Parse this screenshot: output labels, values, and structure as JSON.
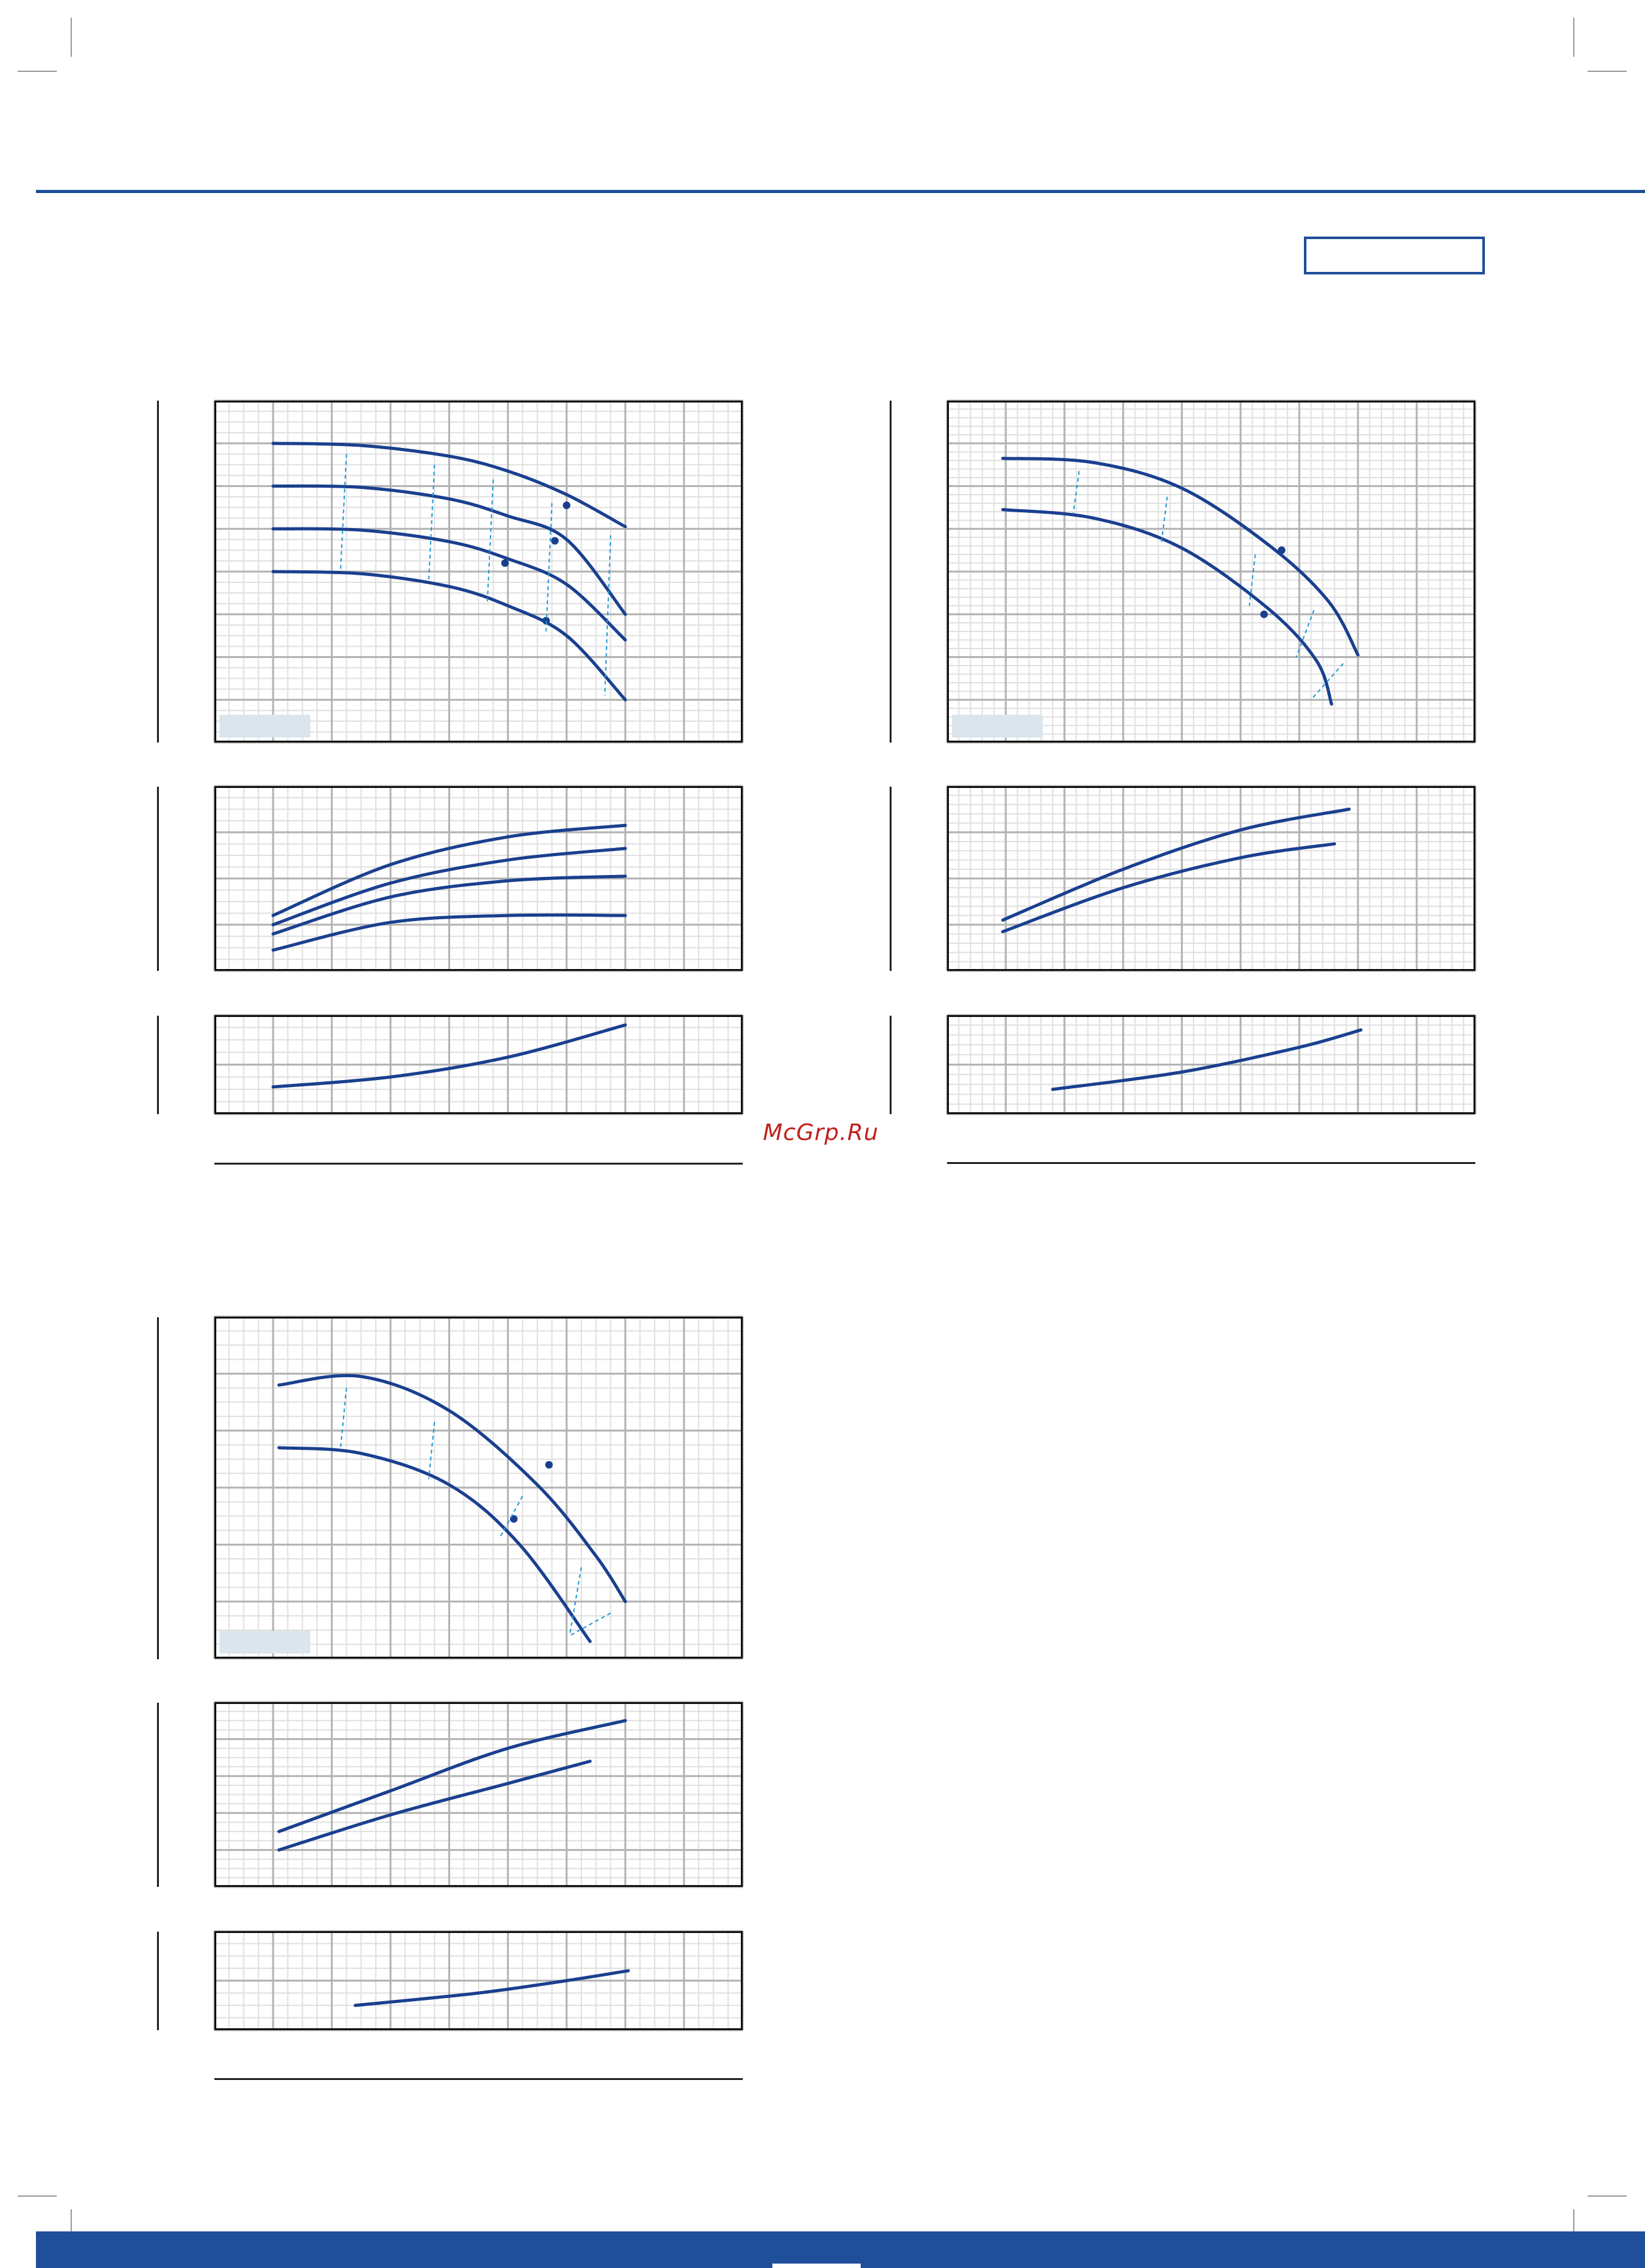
{
  "header": {
    "box_label": ""
  },
  "watermark": {
    "text": "McGrp.Ru"
  },
  "colors": {
    "accent": "#1f4e9a",
    "curve": "#1a3f8f",
    "dashed": "#1e9ad6",
    "grid_major": "#b3b3b3",
    "grid_minor": "#e0e0e0",
    "watermark": "#c0201c"
  },
  "chart_data": [
    {
      "type": "line",
      "title": "",
      "xlabel": "",
      "ylabel": "",
      "xlim": [
        0,
        9
      ],
      "ylim": [
        0,
        8
      ],
      "grid": true,
      "series": [
        {
          "values_xy": [
            [
              1,
              7
            ],
            [
              2.5,
              6.95
            ],
            [
              4,
              6.7
            ],
            [
              5,
              6.35
            ],
            [
              6,
              5.8
            ],
            [
              7,
              5.05
            ]
          ]
        },
        {
          "values_xy": [
            [
              1,
              6
            ],
            [
              2.5,
              5.97
            ],
            [
              4,
              5.7
            ],
            [
              5,
              5.3
            ],
            [
              6,
              4.75
            ],
            [
              7,
              3.0
            ]
          ]
        },
        {
          "values_xy": [
            [
              1,
              5
            ],
            [
              2.5,
              4.97
            ],
            [
              4,
              4.7
            ],
            [
              5,
              4.3
            ],
            [
              6,
              3.7
            ],
            [
              7,
              2.4
            ]
          ]
        },
        {
          "values_xy": [
            [
              1,
              4
            ],
            [
              2.5,
              3.95
            ],
            [
              4,
              3.65
            ],
            [
              5,
              3.2
            ],
            [
              6,
              2.5
            ],
            [
              7,
              1.0
            ]
          ]
        }
      ],
      "markers": [
        [
          6,
          5.55
        ],
        [
          5.8,
          4.72
        ],
        [
          4.95,
          4.2
        ],
        [
          5.65,
          2.85
        ]
      ]
    },
    {
      "type": "line",
      "title": "",
      "xlabel": "",
      "ylabel": "",
      "xlim": [
        0,
        9
      ],
      "ylim": [
        0,
        4
      ],
      "grid": true,
      "series": [
        {
          "values_xy": [
            [
              1,
              1.2
            ],
            [
              3,
              2.3
            ],
            [
              5,
              2.9
            ],
            [
              7,
              3.15
            ]
          ]
        },
        {
          "values_xy": [
            [
              1,
              1.0
            ],
            [
              3,
              1.9
            ],
            [
              5,
              2.4
            ],
            [
              7,
              2.65
            ]
          ]
        },
        {
          "values_xy": [
            [
              1,
              0.8
            ],
            [
              3,
              1.6
            ],
            [
              5,
              1.95
            ],
            [
              7,
              2.05
            ]
          ]
        },
        {
          "values_xy": [
            [
              1,
              0.45
            ],
            [
              3,
              1.05
            ],
            [
              5,
              1.2
            ],
            [
              7,
              1.2
            ]
          ]
        }
      ]
    },
    {
      "type": "line",
      "title": "",
      "xlabel": "",
      "ylabel": "",
      "xlim": [
        0,
        9
      ],
      "ylim": [
        0,
        2
      ],
      "grid": true,
      "series": [
        {
          "values_xy": [
            [
              1,
              0.55
            ],
            [
              3,
              0.75
            ],
            [
              5,
              1.15
            ],
            [
              7,
              1.8
            ]
          ]
        }
      ]
    },
    {
      "type": "line",
      "title": "",
      "xlabel": "",
      "ylabel": "",
      "xlim": [
        0,
        9
      ],
      "ylim": [
        0,
        8
      ],
      "grid": true,
      "series": [
        {
          "values_xy": [
            [
              0.95,
              6.65
            ],
            [
              2.5,
              6.55
            ],
            [
              4,
              5.95
            ],
            [
              5.5,
              4.6
            ],
            [
              6.5,
              3.3
            ],
            [
              7,
              2.05
            ]
          ]
        },
        {
          "values_xy": [
            [
              0.95,
              5.45
            ],
            [
              2.5,
              5.25
            ],
            [
              4,
              4.55
            ],
            [
              5.5,
              3.1
            ],
            [
              6.3,
              1.9
            ],
            [
              6.55,
              0.9
            ]
          ]
        }
      ],
      "markers": [
        [
          5.7,
          4.5
        ],
        [
          5.4,
          3.0
        ]
      ]
    },
    {
      "type": "line",
      "title": "",
      "xlabel": "",
      "ylabel": "",
      "xlim": [
        0,
        9
      ],
      "ylim": [
        0,
        4
      ],
      "grid": true,
      "series": [
        {
          "values_xy": [
            [
              0.95,
              1.1
            ],
            [
              3,
              2.2
            ],
            [
              5,
              3.05
            ],
            [
              6.85,
              3.5
            ]
          ]
        },
        {
          "values_xy": [
            [
              0.95,
              0.85
            ],
            [
              3,
              1.8
            ],
            [
              5,
              2.45
            ],
            [
              6.6,
              2.75
            ]
          ]
        }
      ]
    },
    {
      "type": "line",
      "title": "",
      "xlabel": "",
      "ylabel": "",
      "xlim": [
        0,
        9
      ],
      "ylim": [
        0,
        2
      ],
      "grid": true,
      "series": [
        {
          "values_xy": [
            [
              1.8,
              0.5
            ],
            [
              4,
              0.85
            ],
            [
              6,
              1.35
            ],
            [
              7.05,
              1.7
            ]
          ]
        }
      ]
    },
    {
      "type": "line",
      "title": "",
      "xlabel": "",
      "ylabel": "",
      "xlim": [
        0,
        9
      ],
      "ylim": [
        0,
        6
      ],
      "grid": true,
      "series": [
        {
          "values_xy": [
            [
              1.1,
              4.8
            ],
            [
              2.5,
              4.95
            ],
            [
              4,
              4.35
            ],
            [
              5.5,
              3.05
            ],
            [
              6.5,
              1.8
            ],
            [
              7,
              1.0
            ]
          ]
        },
        {
          "values_xy": [
            [
              1.1,
              3.7
            ],
            [
              2.5,
              3.6
            ],
            [
              4,
              3.05
            ],
            [
              5.2,
              2.0
            ],
            [
              6.4,
              0.3
            ]
          ]
        }
      ],
      "markers": [
        [
          5.7,
          3.4
        ],
        [
          5.1,
          2.45
        ]
      ]
    },
    {
      "type": "line",
      "title": "",
      "xlabel": "",
      "ylabel": "",
      "xlim": [
        0,
        9
      ],
      "ylim": [
        0,
        5
      ],
      "grid": true,
      "series": [
        {
          "values_xy": [
            [
              1.1,
              1.5
            ],
            [
              3,
              2.6
            ],
            [
              5,
              3.75
            ],
            [
              7,
              4.5
            ]
          ]
        },
        {
          "values_xy": [
            [
              1.1,
              1.0
            ],
            [
              3,
              1.95
            ],
            [
              5,
              2.8
            ],
            [
              6.4,
              3.4
            ]
          ]
        }
      ]
    },
    {
      "type": "line",
      "title": "",
      "xlabel": "",
      "ylabel": "",
      "xlim": [
        0,
        9
      ],
      "ylim": [
        0,
        2
      ],
      "grid": true,
      "series": [
        {
          "values_xy": [
            [
              2.4,
              0.5
            ],
            [
              4.5,
              0.75
            ],
            [
              6,
              1.0
            ],
            [
              7.05,
              1.2
            ]
          ]
        }
      ]
    }
  ]
}
